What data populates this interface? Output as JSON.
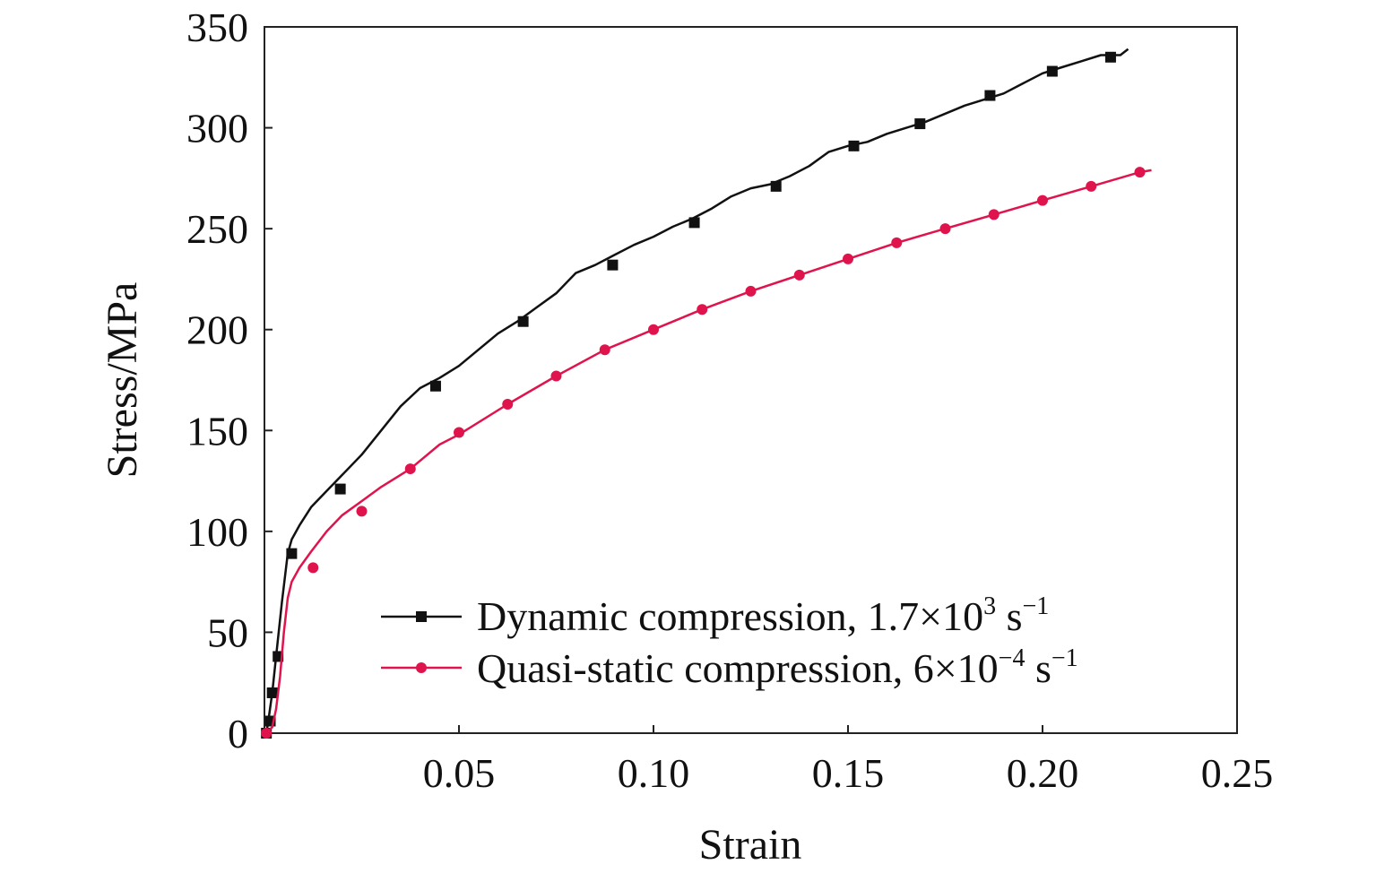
{
  "chart_data": {
    "type": "line",
    "title": "",
    "xlabel": "Strain",
    "ylabel": "Stress/MPa",
    "xlim": [
      0,
      0.25
    ],
    "ylim": [
      0,
      350
    ],
    "x_ticks": [
      0.05,
      0.1,
      0.15,
      0.2,
      0.25
    ],
    "x_tick_labels": [
      "0.05",
      "0.10",
      "0.15",
      "0.20",
      "0.25"
    ],
    "y_ticks": [
      0,
      50,
      100,
      150,
      200,
      250,
      300,
      350
    ],
    "y_tick_labels": [
      "0",
      "50",
      "100",
      "150",
      "200",
      "250",
      "300",
      "350"
    ],
    "grid": false,
    "legend_position": "bottom-right",
    "series": [
      {
        "name": "Dynamic compression, 1.7×10",
        "name_sup1": "3",
        "name_mid": " s",
        "name_sup2": "−1",
        "color": "#111111",
        "marker": "square",
        "x": [
          0.0005,
          0.001,
          0.002,
          0.003,
          0.0045,
          0.006,
          0.007,
          0.009,
          0.012,
          0.016,
          0.02,
          0.025,
          0.03,
          0.035,
          0.04,
          0.045,
          0.05,
          0.055,
          0.06,
          0.065,
          0.07,
          0.075,
          0.08,
          0.085,
          0.09,
          0.095,
          0.1,
          0.105,
          0.11,
          0.115,
          0.12,
          0.125,
          0.13,
          0.135,
          0.14,
          0.145,
          0.15,
          0.155,
          0.16,
          0.165,
          0.17,
          0.175,
          0.18,
          0.185,
          0.19,
          0.195,
          0.2,
          0.205,
          0.21,
          0.215,
          0.22,
          0.222
        ],
        "y": [
          0,
          6,
          20,
          38,
          65,
          89,
          96,
          103,
          112,
          120,
          128,
          138,
          150,
          162,
          171,
          176,
          182,
          190,
          198,
          204,
          211,
          218,
          228,
          232,
          237,
          242,
          246,
          251,
          255,
          260,
          266,
          270,
          272,
          276,
          281,
          288,
          291,
          293,
          297,
          300,
          303,
          307,
          311,
          314,
          317,
          322,
          327,
          330,
          333,
          336,
          336,
          339
        ],
        "marker_x": [
          0.0005,
          0.0015,
          0.002,
          0.0035,
          0.007,
          0.0195,
          0.044,
          0.0665,
          0.0895,
          0.1105,
          0.1315,
          0.1515,
          0.1685,
          0.1865,
          0.2025,
          0.2175
        ],
        "marker_y": [
          0,
          6,
          20,
          38,
          89,
          121,
          172,
          204,
          232,
          253,
          271,
          291,
          302,
          316,
          328,
          335
        ]
      },
      {
        "name": "Quasi-static compression, 6×10",
        "name_sup1": "−4",
        "name_mid": " s",
        "name_sup2": "−1",
        "color": "#e0144c",
        "marker": "circle",
        "x": [
          0.0005,
          0.002,
          0.003,
          0.004,
          0.005,
          0.006,
          0.007,
          0.009,
          0.012,
          0.016,
          0.02,
          0.025,
          0.03,
          0.0375,
          0.045,
          0.05,
          0.0625,
          0.075,
          0.0875,
          0.1,
          0.1125,
          0.125,
          0.1375,
          0.15,
          0.1625,
          0.175,
          0.1875,
          0.2,
          0.2125,
          0.225,
          0.228
        ],
        "y": [
          0,
          3,
          12,
          28,
          50,
          67,
          75,
          82,
          90,
          100,
          108,
          115,
          122,
          131,
          143,
          148,
          163,
          177,
          190,
          200,
          210,
          219,
          227,
          235,
          243,
          250,
          257,
          264,
          271,
          278,
          279
        ],
        "marker_x": [
          0.0005,
          0.0125,
          0.025,
          0.0375,
          0.05,
          0.0625,
          0.075,
          0.0875,
          0.1,
          0.1125,
          0.125,
          0.1375,
          0.15,
          0.1625,
          0.175,
          0.1875,
          0.2,
          0.2125,
          0.225
        ],
        "marker_y": [
          0,
          82,
          110,
          131,
          149,
          163,
          177,
          190,
          200,
          210,
          219,
          227,
          235,
          243,
          250,
          257,
          264,
          271,
          278
        ]
      }
    ]
  }
}
